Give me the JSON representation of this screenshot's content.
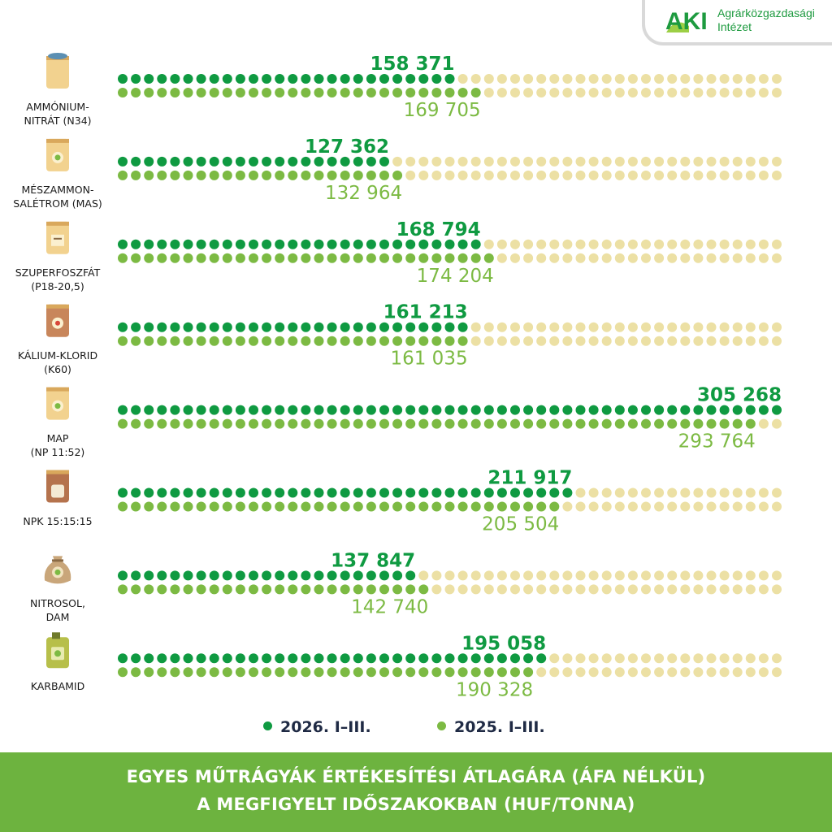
{
  "logo": {
    "mark": "AKI",
    "name_line1": "Agrárközgazdasági",
    "name_line2": "Intézet"
  },
  "colors": {
    "series_2026": "#0f9a41",
    "series_2025": "#7cba43",
    "empty_dot": "#ece0a4",
    "footer_bg": "#6db33f"
  },
  "chart_data": {
    "type": "bar",
    "style": "dot-matrix",
    "categories": [
      {
        "label_lines": [
          "AMMÓNIUM-",
          "NITRÁT (N34)"
        ],
        "icon": "fertilizer-sack-icon"
      },
      {
        "label_lines": [
          "MÉSZAMMON-",
          "SALÉTROM (MAS)"
        ],
        "icon": "fertilizer-bag-leaf-icon"
      },
      {
        "label_lines": [
          "SZUPERFOSZFÁT",
          "(P18-20,5)"
        ],
        "icon": "fertilizer-bag-label-icon"
      },
      {
        "label_lines": [
          "KÁLIUM-KLORID",
          "(K60)"
        ],
        "icon": "fertilizer-bag-flower-icon"
      },
      {
        "label_lines": [
          "MAP",
          "(NP 11:52)"
        ],
        "icon": "fertilizer-bag-leaf-icon"
      },
      {
        "label_lines": [
          "NPK 15:15:15"
        ],
        "icon": "fertilizer-bag-window-icon"
      },
      {
        "label_lines": [
          "NITROSOL,",
          "DAM"
        ],
        "icon": "tied-sack-icon"
      },
      {
        "label_lines": [
          "KARBAMID"
        ],
        "icon": "jerrycan-icon"
      }
    ],
    "series": [
      {
        "name": "2026. I–III.",
        "values": [
          158371,
          127362,
          168794,
          161213,
          305268,
          211917,
          137847,
          195058
        ],
        "labels": [
          "158 371",
          "127 362",
          "168 794",
          "161 213",
          "305 268",
          "211 917",
          "137 847",
          "195 058"
        ]
      },
      {
        "name": "2025. I–III.",
        "values": [
          169705,
          132964,
          174204,
          161035,
          293764,
          205504,
          142740,
          190328
        ],
        "labels": [
          "169 705",
          "132 964",
          "174 204",
          "161 035",
          "293 764",
          "205 504",
          "142 740",
          "190 328"
        ]
      }
    ],
    "dots_per_row": 51,
    "value_per_dot": 6000,
    "xlabel": "",
    "ylabel": ""
  },
  "legend": {
    "label_2026": "2026. I–III.",
    "label_2025": "2025. I–III."
  },
  "footer": {
    "line1": "EGYES MŰTRÁGYÁK ÉRTÉKESÍTÉSI ÁTLAGÁRA (ÁFA NÉLKÜL)",
    "line2": "A MEGFIGYELT IDŐSZAKOKBAN (HUF/TONNA)"
  }
}
